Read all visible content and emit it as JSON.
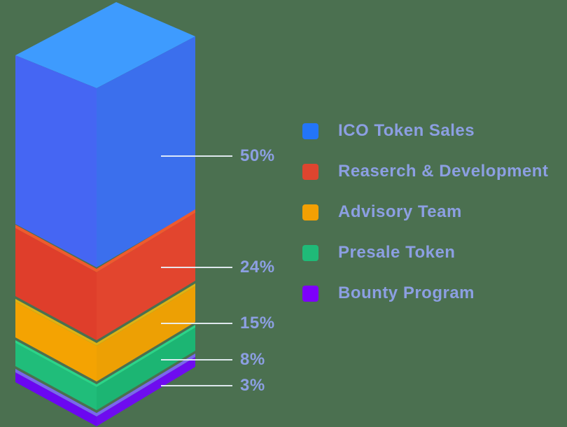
{
  "background_color": "#4B7050",
  "text_color": "#8C9FE2",
  "callout_line_color": "#EAF2FB",
  "chart_data": {
    "type": "bar",
    "variant": "isometric-stacked-column",
    "title": "",
    "unit": "%",
    "legend_position": "right",
    "categories": [
      "ICO Token Sales",
      "Reaserch & Development",
      "Advisory Team",
      "Presale Token",
      "Bounty Program"
    ],
    "values": [
      50,
      24,
      15,
      8,
      3
    ],
    "value_labels": [
      "50%",
      "24%",
      "15%",
      "8%",
      "3%"
    ],
    "segment_colors": [
      {
        "name": "blue",
        "top": "#3E9BFE",
        "left": "#4566F3",
        "right": "#3B6FED",
        "rim": "#3E9BFE",
        "legend": "#2375F8"
      },
      {
        "name": "red",
        "top": "#EF5A2E",
        "left": "#DF3E2B",
        "right": "#E2452E",
        "rim": "#EF5A2E",
        "legend": "#DE452F"
      },
      {
        "name": "orange",
        "top": "#DDB214",
        "left": "#F4A302",
        "right": "#EDA004",
        "rim": "#DDB214",
        "legend": "#F3A003"
      },
      {
        "name": "green",
        "top": "#2BD488",
        "left": "#20BD7A",
        "right": "#1CB573",
        "rim": "#2BD488",
        "legend": "#1FBA78"
      },
      {
        "name": "purple",
        "top": "#7968EC",
        "left": "#6B07F1",
        "right": "#6E0CEF",
        "rim": "#7968EC",
        "legend": "#7D00FB"
      }
    ]
  }
}
